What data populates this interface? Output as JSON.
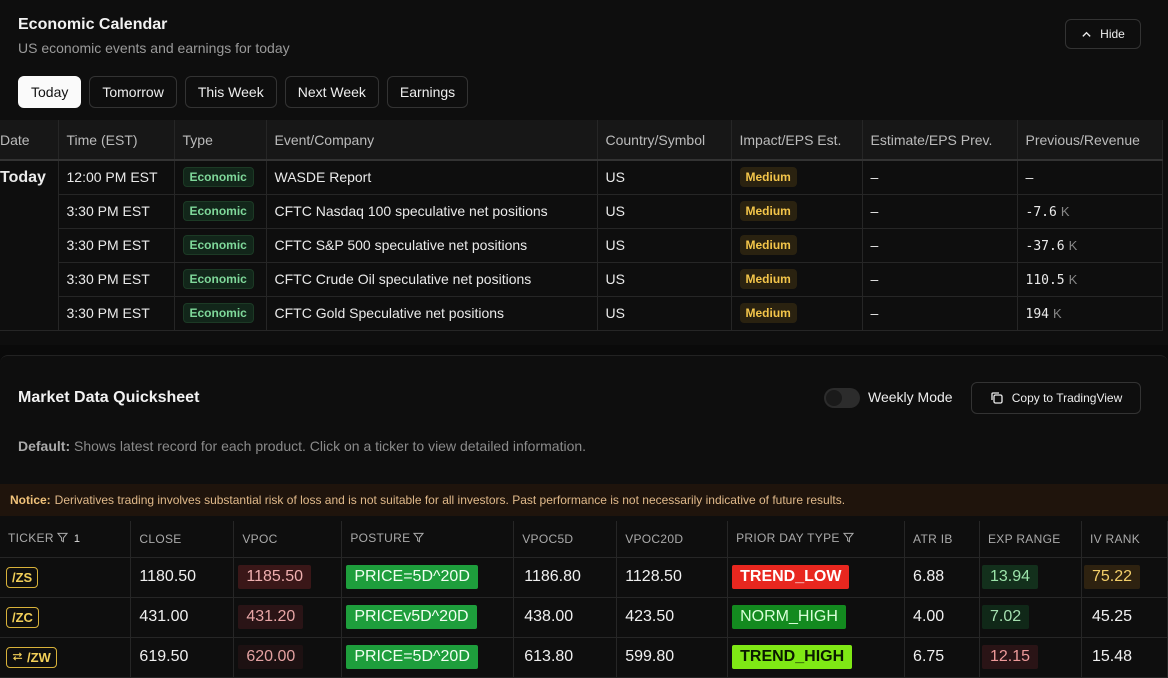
{
  "calendar": {
    "title": "Economic Calendar",
    "subtitle": "US economic events and earnings for today",
    "hide_label": "Hide",
    "tabs": [
      "Today",
      "Tomorrow",
      "This Week",
      "Next Week",
      "Earnings"
    ],
    "active_tab": "Today",
    "headers": [
      "Date",
      "Time (EST)",
      "Type",
      "Event/Company",
      "Country/Symbol",
      "Impact/EPS Est.",
      "Estimate/EPS Prev.",
      "Previous/Revenue"
    ],
    "date_label": "Today",
    "rows": [
      {
        "time": "12:00 PM EST",
        "type": "Economic",
        "event": "WASDE Report",
        "country": "US",
        "impact": "Medium",
        "estimate": "–",
        "previous": "–",
        "unit": ""
      },
      {
        "time": "3:30 PM EST",
        "type": "Economic",
        "event": "CFTC Nasdaq 100 speculative net positions",
        "country": "US",
        "impact": "Medium",
        "estimate": "–",
        "previous": "-7.6",
        "unit": "K"
      },
      {
        "time": "3:30 PM EST",
        "type": "Economic",
        "event": "CFTC S&P 500 speculative net positions",
        "country": "US",
        "impact": "Medium",
        "estimate": "–",
        "previous": "-37.6",
        "unit": "K"
      },
      {
        "time": "3:30 PM EST",
        "type": "Economic",
        "event": "CFTC Crude Oil speculative net positions",
        "country": "US",
        "impact": "Medium",
        "estimate": "–",
        "previous": "110.5",
        "unit": "K"
      },
      {
        "time": "3:30 PM EST",
        "type": "Economic",
        "event": "CFTC Gold Speculative net positions",
        "country": "US",
        "impact": "Medium",
        "estimate": "–",
        "previous": "194",
        "unit": "K"
      }
    ]
  },
  "quicksheet": {
    "title": "Market Data Quicksheet",
    "weekly_mode_label": "Weekly Mode",
    "weekly_mode_on": false,
    "copy_label": "Copy to TradingView",
    "default_label": "Default:",
    "default_text": "Shows latest record for each product. Click on a ticker to view detailed information.",
    "notice_label": "Notice:",
    "notice_text": "Derivatives trading involves substantial risk of loss and is not suitable for all investors. Past performance is not necessarily indicative of future results.",
    "headers": [
      "TICKER",
      "CLOSE",
      "VPOC",
      "POSTURE",
      "VPOC5D",
      "VPOC20D",
      "PRIOR DAY TYPE",
      "ATR IB",
      "EXP RANGE",
      "IV RANK"
    ],
    "ticker_filter_count": "1",
    "rows": [
      {
        "ticker": "/ZS",
        "swap_icon": false,
        "close": "1180.50",
        "vpoc": "1185.50",
        "vpoc_color": "#3a1718",
        "vpoc_text": "#f0b0b0",
        "posture": "PRICE=5D^20D",
        "posture_bg": "#1e9e3c",
        "vpoc5d": "1186.80",
        "vpoc20d": "1128.50",
        "pdt": "TREND_LOW",
        "pdt_bg": "#e8271f",
        "pdt_fg": "#ffffff",
        "atr": "6.88",
        "exp": "13.94",
        "exp_bg": "#13301c",
        "exp_fg": "#9be3a9",
        "iv": "75.22",
        "iv_bg": "#2e2210",
        "iv_fg": "#f3cf6a"
      },
      {
        "ticker": "/ZC",
        "swap_icon": false,
        "close": "431.00",
        "vpoc": "431.20",
        "vpoc_color": "#2a1416",
        "vpoc_text": "#e8a6a6",
        "posture": "PRICEv5D^20D",
        "posture_bg": "#1e9e3c",
        "vpoc5d": "438.00",
        "vpoc20d": "423.50",
        "pdt": "NORM_HIGH",
        "pdt_bg": "#138a1f",
        "pdt_fg": "#d8ffd8",
        "atr": "4.00",
        "exp": "7.02",
        "exp_bg": "#102818",
        "exp_fg": "#a5e0b0",
        "iv": "45.25",
        "iv_bg": "transparent",
        "iv_fg": "#f0f0f0"
      },
      {
        "ticker": "/ZW",
        "swap_icon": true,
        "close": "619.50",
        "vpoc": "620.00",
        "vpoc_color": "#1d1112",
        "vpoc_text": "#e3a1a1",
        "posture": "PRICE=5D^20D",
        "posture_bg": "#1e9e3c",
        "vpoc5d": "613.80",
        "vpoc20d": "599.80",
        "pdt": "TREND_HIGH",
        "pdt_bg": "#7fe815",
        "pdt_fg": "#0a1a00",
        "atr": "6.75",
        "exp": "12.15",
        "exp_bg": "#2a1416",
        "exp_fg": "#ee9a9a",
        "iv": "15.48",
        "iv_bg": "transparent",
        "iv_fg": "#f0f0f0"
      }
    ]
  }
}
